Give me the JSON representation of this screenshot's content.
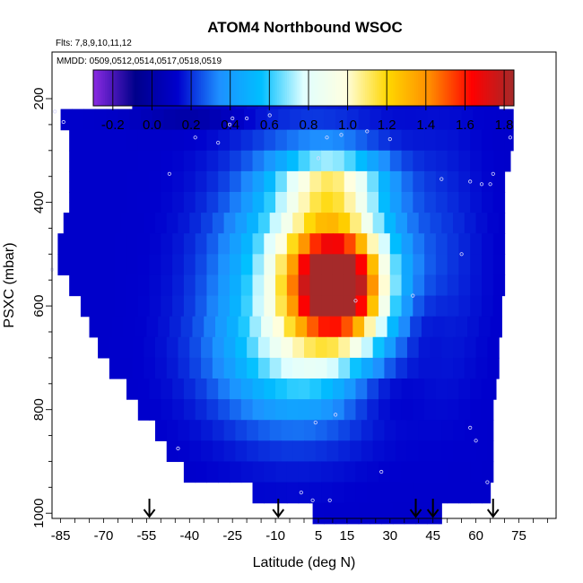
{
  "chart_data": {
    "type": "heatmap",
    "title": "ATOM4 Northbound WSOC",
    "notes": [
      "Flts: 7,8,9,10,11,12",
      "MMDD: 0509,0512,0514,0517,0518,0519"
    ],
    "xlabel": "Latitude (deg N)",
    "ylabel": "PSXC (mbar)",
    "xlim": [
      -88,
      88
    ],
    "ylim": [
      1010,
      110
    ],
    "y_reversed": true,
    "x_ticks": [
      -85,
      -70,
      -55,
      -40,
      -25,
      -10,
      5,
      15,
      30,
      45,
      60,
      75
    ],
    "y_ticks": [
      200,
      400,
      600,
      800,
      1000
    ],
    "colorbar": {
      "range": [
        -0.3,
        1.85
      ],
      "ticks": [
        -0.2,
        0.0,
        0.2,
        0.4,
        0.6,
        0.8,
        1.0,
        1.2,
        1.4,
        1.6,
        1.8
      ],
      "stops": [
        "#8a2be2",
        "#00008b",
        "#0000cd",
        "#1e90ff",
        "#00bfff",
        "#e0ffff",
        "#ffffe0",
        "#ffd700",
        "#ff8c00",
        "#ff0000",
        "#a52a2a"
      ]
    },
    "flight_latitudes": [
      -54,
      -9,
      39,
      45,
      66
    ],
    "domain_rows": [
      {
        "p": 180,
        "lat_min": -55,
        "lat_max": 68
      },
      {
        "p": 210,
        "lat_min": -60,
        "lat_max": 68
      },
      {
        "p": 240,
        "lat_min": -85,
        "lat_max": 73
      },
      {
        "p": 280,
        "lat_min": -82,
        "lat_max": 73
      },
      {
        "p": 320,
        "lat_min": -82,
        "lat_max": 72
      },
      {
        "p": 360,
        "lat_min": -82,
        "lat_max": 70
      },
      {
        "p": 400,
        "lat_min": -82,
        "lat_max": 70
      },
      {
        "p": 440,
        "lat_min": -84,
        "lat_max": 70
      },
      {
        "p": 480,
        "lat_min": -86,
        "lat_max": 70
      },
      {
        "p": 520,
        "lat_min": -86,
        "lat_max": 70
      },
      {
        "p": 560,
        "lat_min": -82,
        "lat_max": 70
      },
      {
        "p": 600,
        "lat_min": -78,
        "lat_max": 69
      },
      {
        "p": 640,
        "lat_min": -75,
        "lat_max": 69
      },
      {
        "p": 680,
        "lat_min": -72,
        "lat_max": 68
      },
      {
        "p": 720,
        "lat_min": -68,
        "lat_max": 68
      },
      {
        "p": 760,
        "lat_min": -62,
        "lat_max": 67
      },
      {
        "p": 800,
        "lat_min": -58,
        "lat_max": 66
      },
      {
        "p": 840,
        "lat_min": -52,
        "lat_max": 66
      },
      {
        "p": 880,
        "lat_min": -48,
        "lat_max": 66
      },
      {
        "p": 920,
        "lat_min": -42,
        "lat_max": 66
      },
      {
        "p": 960,
        "lat_min": -18,
        "lat_max": 65
      },
      {
        "p": 1000,
        "lat_min": 3,
        "lat_max": 48
      }
    ],
    "features": [
      {
        "lat": 13,
        "p": 570,
        "dlat": 16,
        "dp": 100,
        "amp": 1.12
      },
      {
        "lat": 10,
        "p": 500,
        "dlat": 20,
        "dp": 150,
        "amp": 0.75
      },
      {
        "lat": -4,
        "p": 560,
        "dlat": 26,
        "dp": 220,
        "amp": 0.5
      },
      {
        "lat": 10,
        "p": 360,
        "dlat": 18,
        "dp": 55,
        "amp": 0.5
      },
      {
        "lat": -2,
        "p": 700,
        "dlat": 28,
        "dp": 120,
        "amp": 0.3
      },
      {
        "lat": 48,
        "p": 500,
        "dlat": 14,
        "dp": 250,
        "amp": 0.08
      }
    ],
    "base_value": 0.12,
    "low_regions": [
      {
        "lat": -40,
        "p": 240,
        "dlat": 18,
        "dp": 25,
        "amp": -0.12
      },
      {
        "lat": 25,
        "p": 760,
        "dlat": 14,
        "dp": 60,
        "amp": -0.1
      },
      {
        "lat": 40,
        "p": 640,
        "dlat": 10,
        "dp": 80,
        "amp": -0.08
      }
    ],
    "obs_points": [
      {
        "lat": -68,
        "p": 192
      },
      {
        "lat": -70,
        "p": 195
      },
      {
        "lat": -87,
        "p": 225
      },
      {
        "lat": -84,
        "p": 245
      },
      {
        "lat": -25,
        "p": 238
      },
      {
        "lat": -20,
        "p": 238
      },
      {
        "lat": -26,
        "p": 250
      },
      {
        "lat": -12,
        "p": 232
      },
      {
        "lat": -38,
        "p": 275
      },
      {
        "lat": -30,
        "p": 285
      },
      {
        "lat": 8,
        "p": 275
      },
      {
        "lat": 13,
        "p": 270
      },
      {
        "lat": 22,
        "p": 263
      },
      {
        "lat": 30,
        "p": 278
      },
      {
        "lat": 5,
        "p": 315
      },
      {
        "lat": -47,
        "p": 345
      },
      {
        "lat": 43,
        "p": 185
      },
      {
        "lat": 72,
        "p": 205
      },
      {
        "lat": 72,
        "p": 275
      },
      {
        "lat": 48,
        "p": 355
      },
      {
        "lat": 58,
        "p": 360
      },
      {
        "lat": 62,
        "p": 365
      },
      {
        "lat": 65,
        "p": 365
      },
      {
        "lat": 66,
        "p": 345
      },
      {
        "lat": -88,
        "p": 530
      },
      {
        "lat": 18,
        "p": 590
      },
      {
        "lat": 38,
        "p": 580
      },
      {
        "lat": 55,
        "p": 500
      },
      {
        "lat": 4,
        "p": 825
      },
      {
        "lat": 11,
        "p": 810
      },
      {
        "lat": -44,
        "p": 875
      },
      {
        "lat": 60,
        "p": 860
      },
      {
        "lat": 58,
        "p": 835
      },
      {
        "lat": 27,
        "p": 920
      },
      {
        "lat": 64,
        "p": 940
      },
      {
        "lat": -1,
        "p": 960
      },
      {
        "lat": 3,
        "p": 975
      },
      {
        "lat": 9,
        "p": 975
      }
    ]
  }
}
